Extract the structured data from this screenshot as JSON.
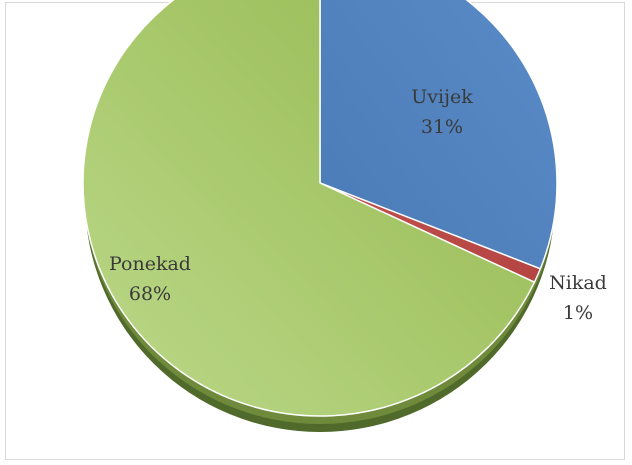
{
  "chart_data": {
    "type": "pie",
    "style": "3d",
    "categories": [
      "Uvijek",
      "Nikad",
      "Ponekad"
    ],
    "values": [
      31,
      1,
      68
    ],
    "labels": [
      "31%",
      "1%",
      "68%"
    ],
    "colors": [
      "#4f81bd",
      "#c0504d",
      "#9bbb59"
    ],
    "title": "",
    "legend": "none"
  }
}
